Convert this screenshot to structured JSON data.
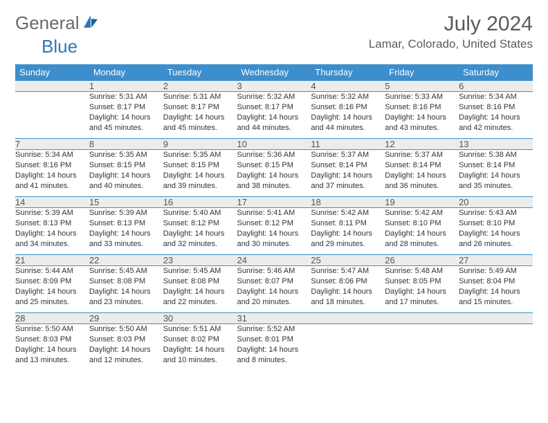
{
  "logo": {
    "part1": "General",
    "part2": "Blue"
  },
  "title": "July 2024",
  "location": "Lamar, Colorado, United States",
  "colors": {
    "header_bg": "#3c8ecc",
    "header_text": "#ffffff",
    "daynum_bg": "#ececec",
    "border": "#3c8ecc",
    "body_text": "#333333",
    "logo_gray": "#6a6a6a",
    "logo_blue": "#2e77b8"
  },
  "typography": {
    "base_font": "Arial",
    "title_size_pt": 22,
    "cell_size_pt": 8
  },
  "calendar": {
    "type": "table",
    "columns": [
      "Sunday",
      "Monday",
      "Tuesday",
      "Wednesday",
      "Thursday",
      "Friday",
      "Saturday"
    ],
    "weeks": [
      [
        null,
        {
          "n": "1",
          "sr": "5:31 AM",
          "ss": "8:17 PM",
          "dl": "14 hours and 45 minutes."
        },
        {
          "n": "2",
          "sr": "5:31 AM",
          "ss": "8:17 PM",
          "dl": "14 hours and 45 minutes."
        },
        {
          "n": "3",
          "sr": "5:32 AM",
          "ss": "8:17 PM",
          "dl": "14 hours and 44 minutes."
        },
        {
          "n": "4",
          "sr": "5:32 AM",
          "ss": "8:16 PM",
          "dl": "14 hours and 44 minutes."
        },
        {
          "n": "5",
          "sr": "5:33 AM",
          "ss": "8:16 PM",
          "dl": "14 hours and 43 minutes."
        },
        {
          "n": "6",
          "sr": "5:34 AM",
          "ss": "8:16 PM",
          "dl": "14 hours and 42 minutes."
        }
      ],
      [
        {
          "n": "7",
          "sr": "5:34 AM",
          "ss": "8:16 PM",
          "dl": "14 hours and 41 minutes."
        },
        {
          "n": "8",
          "sr": "5:35 AM",
          "ss": "8:15 PM",
          "dl": "14 hours and 40 minutes."
        },
        {
          "n": "9",
          "sr": "5:35 AM",
          "ss": "8:15 PM",
          "dl": "14 hours and 39 minutes."
        },
        {
          "n": "10",
          "sr": "5:36 AM",
          "ss": "8:15 PM",
          "dl": "14 hours and 38 minutes."
        },
        {
          "n": "11",
          "sr": "5:37 AM",
          "ss": "8:14 PM",
          "dl": "14 hours and 37 minutes."
        },
        {
          "n": "12",
          "sr": "5:37 AM",
          "ss": "8:14 PM",
          "dl": "14 hours and 36 minutes."
        },
        {
          "n": "13",
          "sr": "5:38 AM",
          "ss": "8:14 PM",
          "dl": "14 hours and 35 minutes."
        }
      ],
      [
        {
          "n": "14",
          "sr": "5:39 AM",
          "ss": "8:13 PM",
          "dl": "14 hours and 34 minutes."
        },
        {
          "n": "15",
          "sr": "5:39 AM",
          "ss": "8:13 PM",
          "dl": "14 hours and 33 minutes."
        },
        {
          "n": "16",
          "sr": "5:40 AM",
          "ss": "8:12 PM",
          "dl": "14 hours and 32 minutes."
        },
        {
          "n": "17",
          "sr": "5:41 AM",
          "ss": "8:12 PM",
          "dl": "14 hours and 30 minutes."
        },
        {
          "n": "18",
          "sr": "5:42 AM",
          "ss": "8:11 PM",
          "dl": "14 hours and 29 minutes."
        },
        {
          "n": "19",
          "sr": "5:42 AM",
          "ss": "8:10 PM",
          "dl": "14 hours and 28 minutes."
        },
        {
          "n": "20",
          "sr": "5:43 AM",
          "ss": "8:10 PM",
          "dl": "14 hours and 26 minutes."
        }
      ],
      [
        {
          "n": "21",
          "sr": "5:44 AM",
          "ss": "8:09 PM",
          "dl": "14 hours and 25 minutes."
        },
        {
          "n": "22",
          "sr": "5:45 AM",
          "ss": "8:08 PM",
          "dl": "14 hours and 23 minutes."
        },
        {
          "n": "23",
          "sr": "5:45 AM",
          "ss": "8:08 PM",
          "dl": "14 hours and 22 minutes."
        },
        {
          "n": "24",
          "sr": "5:46 AM",
          "ss": "8:07 PM",
          "dl": "14 hours and 20 minutes."
        },
        {
          "n": "25",
          "sr": "5:47 AM",
          "ss": "8:06 PM",
          "dl": "14 hours and 18 minutes."
        },
        {
          "n": "26",
          "sr": "5:48 AM",
          "ss": "8:05 PM",
          "dl": "14 hours and 17 minutes."
        },
        {
          "n": "27",
          "sr": "5:49 AM",
          "ss": "8:04 PM",
          "dl": "14 hours and 15 minutes."
        }
      ],
      [
        {
          "n": "28",
          "sr": "5:50 AM",
          "ss": "8:03 PM",
          "dl": "14 hours and 13 minutes."
        },
        {
          "n": "29",
          "sr": "5:50 AM",
          "ss": "8:03 PM",
          "dl": "14 hours and 12 minutes."
        },
        {
          "n": "30",
          "sr": "5:51 AM",
          "ss": "8:02 PM",
          "dl": "14 hours and 10 minutes."
        },
        {
          "n": "31",
          "sr": "5:52 AM",
          "ss": "8:01 PM",
          "dl": "14 hours and 8 minutes."
        },
        null,
        null,
        null
      ]
    ],
    "labels": {
      "sunrise": "Sunrise:",
      "sunset": "Sunset:",
      "daylight": "Daylight:"
    }
  }
}
